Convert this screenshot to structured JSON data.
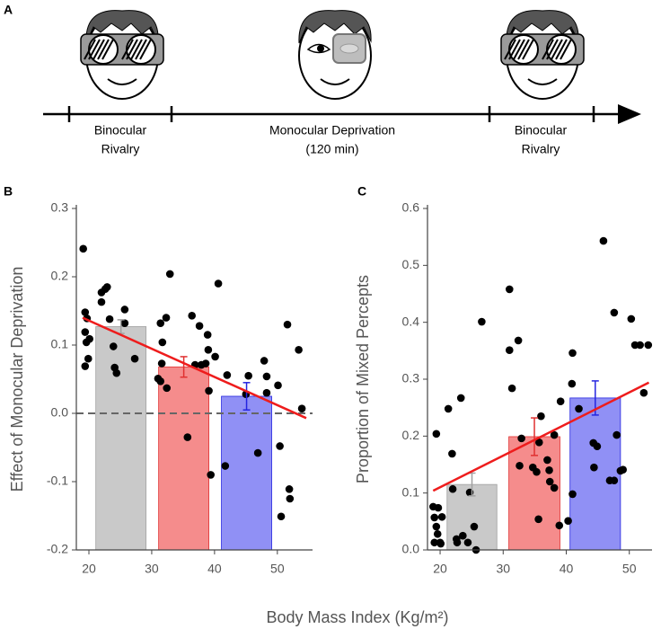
{
  "panel_labels": [
    "A",
    "B",
    "C"
  ],
  "timeline": {
    "phases": [
      [
        "Binocular",
        "Rivalry"
      ],
      [
        "Monocular Deprivation",
        "(120 min)"
      ],
      [
        "Binocular",
        "Rivalry"
      ]
    ]
  },
  "xlabel": "Body Mass Index (Kg/m²)",
  "chart_data": [
    {
      "type": "scatter",
      "ylabel": "Effect of Monocular Deprivation",
      "xlim": [
        18,
        55.6
      ],
      "ylim": [
        -0.2,
        0.3
      ],
      "xticks": [
        20,
        30,
        40,
        50
      ],
      "yticks": [
        0.3,
        0.2,
        0.1,
        {
          "value": 0,
          "label": "0.0"
        },
        -0.1,
        -0.2
      ],
      "reference_y": 0,
      "points": {
        "color": "#000000",
        "x": [
          19.1,
          19.4,
          19.7,
          19.4,
          20.1,
          19.6,
          19.9,
          19.4,
          22,
          22.6,
          22.9,
          22,
          23.3,
          23.9,
          24.1,
          24.4,
          25.7,
          25.7,
          27.3,
          31.4,
          32.3,
          32.9,
          31.7,
          31.4,
          32.4,
          31.6,
          31,
          35.7,
          36.4,
          36.9,
          37.6,
          37.9,
          38.6,
          39,
          38.9,
          39.1,
          39.4,
          40.6,
          40.1,
          41.7,
          42,
          45.4,
          45,
          46.9,
          47.9,
          48.3,
          48.3,
          50.1,
          50.4,
          51.6,
          51.9,
          52,
          50.6,
          53.9,
          53.4
        ],
        "values": [
          0.241,
          0.148,
          0.139,
          0.119,
          0.109,
          0.104,
          0.08,
          0.069,
          0.163,
          0.182,
          0.185,
          0.177,
          0.138,
          0.098,
          0.067,
          0.059,
          0.152,
          0.132,
          0.08,
          0.132,
          0.14,
          0.204,
          0.104,
          0.047,
          0.037,
          0.073,
          0.051,
          -0.035,
          0.143,
          0.071,
          0.128,
          0.071,
          0.073,
          0.093,
          0.115,
          0.033,
          -0.09,
          0.19,
          0.083,
          -0.077,
          0.056,
          0.055,
          0.028,
          -0.058,
          0.077,
          0.054,
          0.03,
          0.041,
          -0.048,
          0.13,
          -0.111,
          -0.125,
          -0.151,
          0.007,
          0.093
        ]
      },
      "bars": {
        "x_left": [
          21.1,
          31.1,
          41.1
        ],
        "x_right": [
          29.1,
          39.1,
          49.1
        ],
        "values": [
          0.127,
          0.068,
          0.025
        ],
        "errors": [
          0.01,
          0.015,
          0.02
        ],
        "colors": [
          "#c9c9c9",
          "#f58c8c",
          "#9090f5"
        ],
        "error_colors": [
          "#a0a0a0",
          "#e03030",
          "#2525e0"
        ]
      },
      "fit": {
        "x": [
          19,
          54.6
        ],
        "values": [
          0.14,
          -0.007
        ],
        "color": "#ee1c1c"
      }
    },
    {
      "type": "scatter",
      "ylabel": "Proportion of Mixed Percepts",
      "xlim": [
        18,
        53.6
      ],
      "ylim": [
        0,
        0.6
      ],
      "xticks": [
        20,
        30,
        40,
        50
      ],
      "yticks": [
        0.6,
        0.5,
        0.4,
        0.3,
        0.2,
        0.1,
        {
          "value": 0,
          "label": "0.0"
        }
      ],
      "points": {
        "color": "#000000",
        "x": [
          18.9,
          19.1,
          19.4,
          19.6,
          19.1,
          20,
          19.7,
          19.4,
          20.3,
          20.1,
          21.3,
          21.9,
          22,
          22.6,
          22.7,
          23.3,
          23.6,
          24.4,
          24.7,
          25.4,
          25.7,
          26.6,
          31,
          31,
          31.4,
          32.4,
          32.6,
          32.9,
          34.7,
          35.3,
          35.6,
          35.7,
          36,
          37,
          37.3,
          37.4,
          38.1,
          38.1,
          38.9,
          39.1,
          40.3,
          41,
          40.9,
          41,
          42,
          44.3,
          44.9,
          44.4,
          45.9,
          47.6,
          46.9,
          48,
          47.6,
          48.6,
          50.3,
          50.9,
          51.7,
          52.3,
          53,
          49
        ],
        "values": [
          0.076,
          0.057,
          0.041,
          0.028,
          0.013,
          0.013,
          0.074,
          0.204,
          0.058,
          0.011,
          0.248,
          0.169,
          0.107,
          0.019,
          0.013,
          0.267,
          0.025,
          0.013,
          0.101,
          0.041,
          0,
          0.401,
          0.458,
          0.351,
          0.284,
          0.368,
          0.148,
          0.196,
          0.145,
          0.137,
          0.054,
          0.189,
          0.235,
          0.158,
          0.14,
          0.12,
          0.202,
          0.109,
          0.043,
          0.261,
          0.051,
          0.346,
          0.292,
          0.098,
          0.248,
          0.188,
          0.182,
          0.145,
          0.543,
          0.417,
          0.122,
          0.202,
          0.122,
          0.139,
          0.406,
          0.36,
          0.36,
          0.276,
          0.36,
          0.141
        ]
      },
      "bars": {
        "x_left": [
          21.1,
          30.9,
          40.6
        ],
        "x_right": [
          29,
          39,
          48.6
        ],
        "values": [
          0.115,
          0.199,
          0.267
        ],
        "errors": [
          0.02,
          0.033,
          0.03
        ],
        "colors": [
          "#c9c9c9",
          "#f58c8c",
          "#9090f5"
        ],
        "error_colors": [
          "#a0a0a0",
          "#e03030",
          "#2525e0"
        ]
      },
      "fit": {
        "x": [
          18.9,
          53.1
        ],
        "values": [
          0.104,
          0.294
        ],
        "color": "#ee1c1c"
      }
    }
  ]
}
